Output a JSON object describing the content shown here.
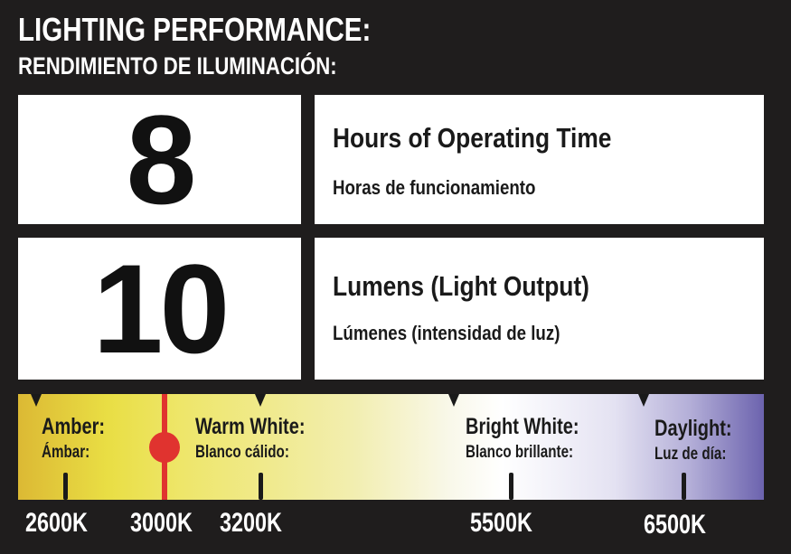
{
  "title": "LIGHTING PERFORMANCE:",
  "subtitle": "RENDIMIENTO DE ILUMINACIÓN:",
  "rows": [
    {
      "value": "8",
      "label": "Hours of Operating Time",
      "label_es": "Horas de funcionamiento"
    },
    {
      "value": "10",
      "label": "Lumens (Light Output)",
      "label_es": "Lúmenes (intensidad de luz)"
    }
  ],
  "spectrum": {
    "categories": [
      {
        "label": "Amber:",
        "label_es": "Ámbar:"
      },
      {
        "label": "Warm White:",
        "label_es": "Blanco cálido:"
      },
      {
        "label": "Bright White:",
        "label_es": "Blanco brillante:"
      },
      {
        "label": "Daylight:",
        "label_es": "Luz de día:"
      }
    ],
    "ticks": [
      "2600K",
      "3000K",
      "3200K",
      "5500K",
      "6500K"
    ],
    "selected": "3000K",
    "marker_color": "#e0332f"
  }
}
